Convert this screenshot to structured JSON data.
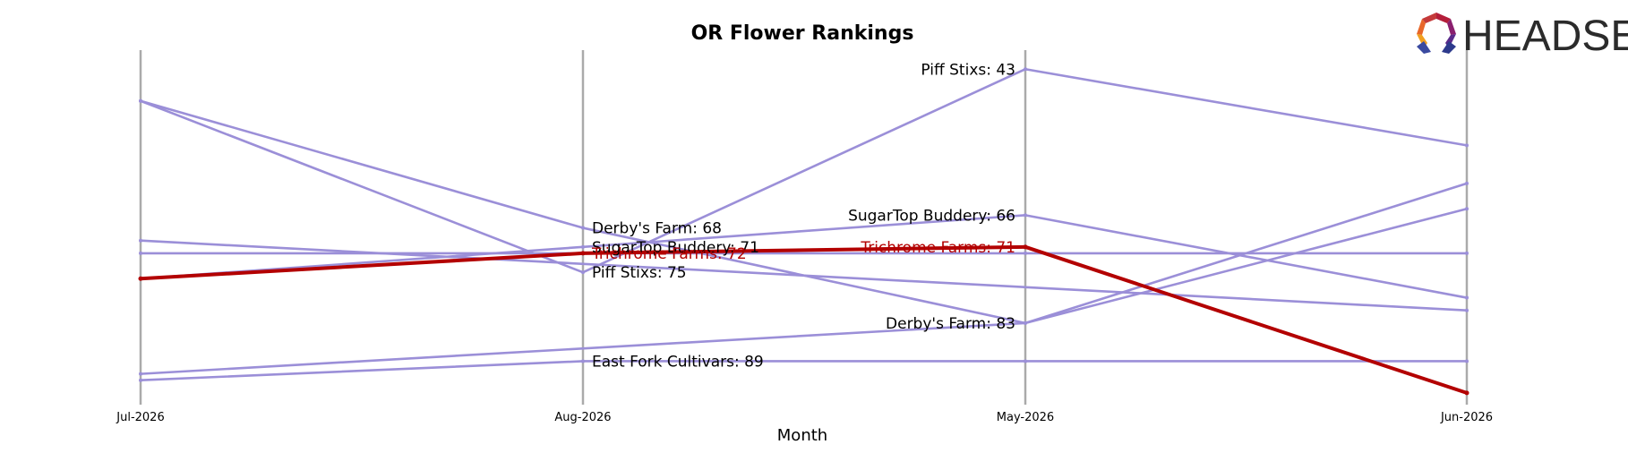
{
  "chart_data": {
    "type": "line",
    "title": "OR Flower Rankings",
    "xlabel": "Month",
    "ylabel": "",
    "categories": [
      "Jul-2026",
      "Aug-2026",
      "May-2026",
      "Jun-2026"
    ],
    "y_inverted": true,
    "ylim": [
      95,
      40
    ],
    "grid": false,
    "series": [
      {
        "name": "Trichrome Farms",
        "values": [
          76,
          72,
          71,
          94
        ],
        "color": "#b30000",
        "highlight": true
      },
      {
        "name": "SugarTop Buddery",
        "values": [
          76,
          71,
          66,
          79
        ],
        "color": "#9b8fd8"
      },
      {
        "name": "Piff Stixs",
        "values": [
          48,
          75,
          43,
          55
        ],
        "color": "#9b8fd8"
      },
      {
        "name": "Derby's Farm",
        "values": [
          48,
          68,
          83,
          65
        ],
        "color": "#9b8fd8"
      },
      {
        "name": "",
        "values": [
          72,
          72,
          72,
          72
        ],
        "color": "#9b8fd8"
      },
      {
        "name": "",
        "values": [
          92,
          89,
          89,
          89
        ],
        "color": "#9b8fd8"
      },
      {
        "name": "",
        "values": [
          91,
          null,
          83,
          61
        ],
        "color": "#9b8fd8"
      },
      {
        "name": "",
        "values": [
          70,
          null,
          null,
          81
        ],
        "color": "#9b8fd8"
      }
    ],
    "labels": [
      {
        "series": "Derby's Farm",
        "col": 1,
        "value": 68,
        "text": "Derby's Farm: 68"
      },
      {
        "series": "SugarTop Buddery",
        "col": 1,
        "value": 71,
        "text": "SugarTop Buddery: 71"
      },
      {
        "series": "Trichrome Farms",
        "col": 1,
        "value": 72,
        "text": "Trichrome Farms: 72"
      },
      {
        "series": "Piff Stixs",
        "col": 1,
        "value": 75,
        "text": "Piff Stixs: 75"
      },
      {
        "series": "",
        "col": 1,
        "value": 89,
        "text": "East Fork Cultivars: 89"
      },
      {
        "series": "Piff Stixs",
        "col": 2,
        "value": 43,
        "text": "Piff Stixs: 43"
      },
      {
        "series": "SugarTop Buddery",
        "col": 2,
        "value": 66,
        "text": "SugarTop Buddery: 66"
      },
      {
        "series": "Trichrome Farms",
        "col": 2,
        "value": 71,
        "text": "Trichrome Farms: 71"
      },
      {
        "series": "Derby's Farm",
        "col": 2,
        "value": 83,
        "text": "Derby's Farm: 83"
      }
    ]
  },
  "logo": {
    "text": "HEADSET",
    "colors": [
      "#e8672a",
      "#b41e3a",
      "#8a1f6e",
      "#2d3a8c"
    ]
  },
  "colors": {
    "highlight": "#b30000",
    "other": "#9b8fd8",
    "axis": "#aaaaaa"
  }
}
